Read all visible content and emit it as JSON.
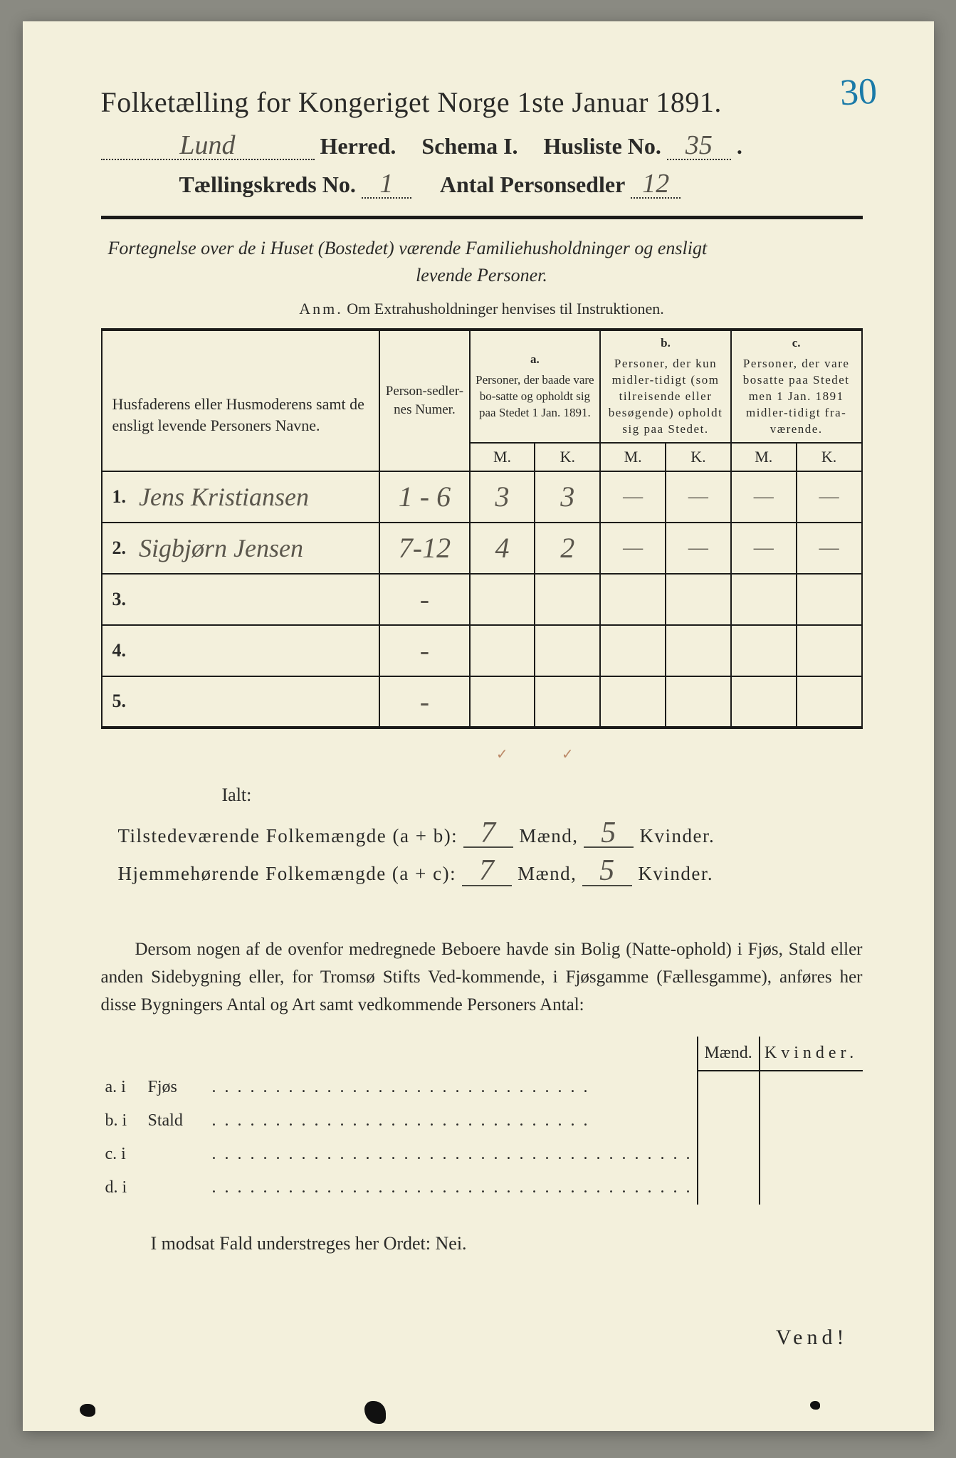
{
  "corner_number": "30",
  "title": "Folketælling for Kongeriget Norge 1ste Januar 1891.",
  "header": {
    "herred_value": "Lund",
    "herred_label": "Herred.",
    "schema_label": "Schema I.",
    "husliste_label": "Husliste No.",
    "husliste_value": "35",
    "kreds_label": "Tællingskreds No.",
    "kreds_value": "1",
    "antal_label": "Antal Personsedler",
    "antal_value": "12"
  },
  "subtitle_line1": "Fortegnelse over de i Huset (Bostedet) værende Familiehusholdninger og ensligt",
  "subtitle_line2": "levende Personer.",
  "anm_prefix": "Anm.",
  "anm_text": "Om Extrahusholdninger henvises til Instruktionen.",
  "table": {
    "col_names": "Husfaderens eller Husmoderens samt de ensligt levende Personers Navne.",
    "col_sedler": "Person-sedler-nes Numer.",
    "col_a_label": "a.",
    "col_a": "Personer, der baade vare bo-satte og opholdt sig paa Stedet 1 Jan. 1891.",
    "col_b_label": "b.",
    "col_b": "Personer, der kun midler-tidigt (som tilreisende eller besøgende) opholdt sig paa Stedet.",
    "col_c_label": "c.",
    "col_c": "Personer, der vare bosatte paa Stedet men 1 Jan. 1891 midler-tidigt fra-værende.",
    "m": "M.",
    "k": "K.",
    "rows": [
      {
        "n": "1.",
        "name": "Jens Kristiansen",
        "sedler": "1 - 6",
        "am": "3",
        "ak": "3",
        "bm": "—",
        "bk": "—",
        "cm": "—",
        "ck": "—"
      },
      {
        "n": "2.",
        "name": "Sigbjørn Jensen",
        "sedler": "7-12",
        "am": "4",
        "ak": "2",
        "bm": "—",
        "bk": "—",
        "cm": "—",
        "ck": "—"
      },
      {
        "n": "3.",
        "name": "",
        "sedler": "-",
        "am": "",
        "ak": "",
        "bm": "",
        "bk": "",
        "cm": "",
        "ck": ""
      },
      {
        "n": "4.",
        "name": "",
        "sedler": "-",
        "am": "",
        "ak": "",
        "bm": "",
        "bk": "",
        "cm": "",
        "ck": ""
      },
      {
        "n": "5.",
        "name": "",
        "sedler": "-",
        "am": "",
        "ak": "",
        "bm": "",
        "bk": "",
        "cm": "",
        "ck": ""
      }
    ]
  },
  "ialt": "Ialt:",
  "totals": {
    "line1_label": "Tilstedeværende Folkemængde (a + b):",
    "line2_label": "Hjemmehørende Folkemængde (a + c):",
    "maend": "Mænd,",
    "kvinder": "Kvinder.",
    "l1_m": "7",
    "l1_k": "5",
    "l2_m": "7",
    "l2_k": "5"
  },
  "para": "Dersom nogen af de ovenfor medregnede Beboere havde sin Bolig (Natte-ophold) i Fjøs, Stald eller anden Sidebygning eller, for Tromsø Stifts Ved-kommende, i Fjøsgamme (Fællesgamme), anføres her disse Bygningers Antal og Art samt vedkommende Personers Antal:",
  "tbl2": {
    "h_maend": "Mænd.",
    "h_kvinder": "Kvinder.",
    "rows": [
      {
        "lbl": "a.  i",
        "name": "Fjøs",
        "dots": ". . . . . . . . . . . .   . . . . . . . . . . . . . . . . . ."
      },
      {
        "lbl": "b.  i",
        "name": "Stald",
        "dots": ". . . . . . . . . . . . . . . . . . . . . . . . . . . . . ."
      },
      {
        "lbl": "c.  i",
        "name": "",
        "dots": ". . . . . . . . . . . . . . . . . . . . . . . . . . . . . . . . . . . . . ."
      },
      {
        "lbl": "d.  i",
        "name": "",
        "dots": ". . . . . . . . . . . . . . . . . . . . . . . . . . . . . . . . . . . . . ."
      }
    ]
  },
  "nei": "I modsat Fald understreges her Ordet: Nei.",
  "vend": "Vend!",
  "colors": {
    "paper": "#f3f0dc",
    "ink": "#2a2a28",
    "rule": "#1c1c1a",
    "handwriting": "#55524a",
    "blue_pencil": "#1a7aa8"
  }
}
